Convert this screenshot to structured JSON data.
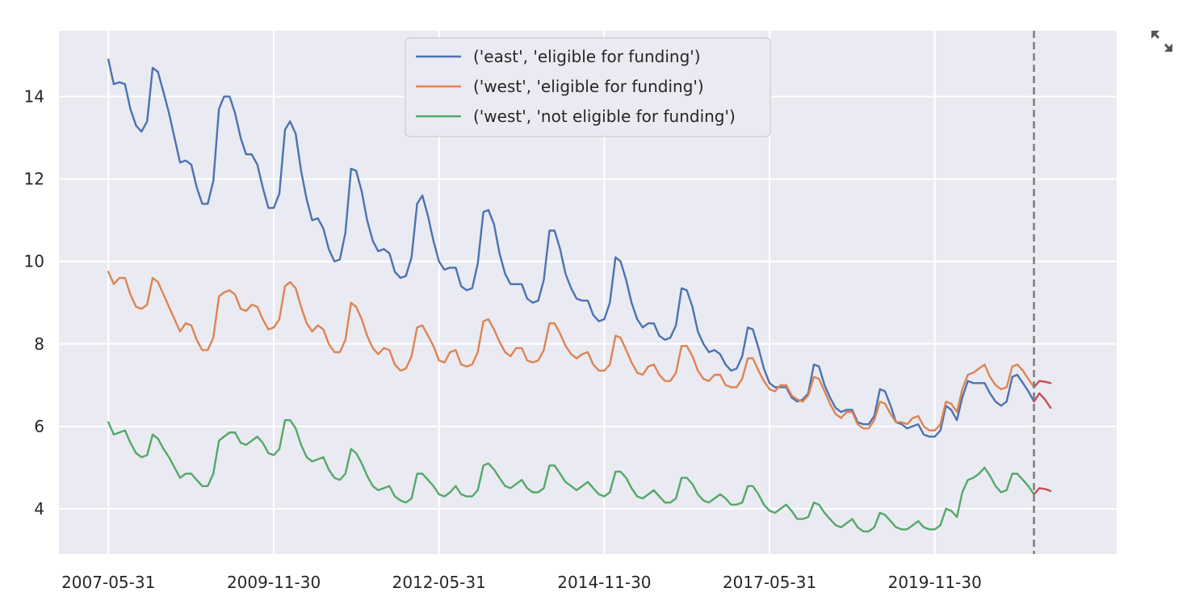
{
  "chart_data": {
    "type": "line",
    "style": "seaborn-darkgrid",
    "x_axis": {
      "ticks": [
        "2007-05-31",
        "2009-11-30",
        "2012-05-31",
        "2014-11-30",
        "2017-05-31",
        "2019-11-30"
      ],
      "range": [
        "2006-08-31",
        "2022-08-31"
      ]
    },
    "y_axis": {
      "ticks": [
        4,
        6,
        8,
        10,
        12,
        14
      ],
      "range": [
        2.9,
        15.6
      ]
    },
    "grid": true,
    "legend": {
      "placement": "upper center",
      "entries": [
        {
          "label": "('east', 'eligible for funding')",
          "color": "#4c72b0"
        },
        {
          "label": "('west', 'eligible for funding')",
          "color": "#dd8452"
        },
        {
          "label": "('west', 'not eligible for funding')",
          "color": "#55a868"
        }
      ]
    },
    "vline": {
      "date": "2021-05-31",
      "color": "#808080",
      "style": "dashed"
    },
    "series": [
      {
        "name": "('east', 'eligible for funding')",
        "color": "#4c72b0",
        "x_start": "2007-05-31",
        "x_step_months": 1,
        "values": [
          14.9,
          14.3,
          14.35,
          14.3,
          13.7,
          13.3,
          13.15,
          13.4,
          14.7,
          14.6,
          14.1,
          13.6,
          13.0,
          12.4,
          12.45,
          12.35,
          11.8,
          11.4,
          11.4,
          11.95,
          13.7,
          14.0,
          14.0,
          13.6,
          13.0,
          12.6,
          12.6,
          12.35,
          11.8,
          11.3,
          11.3,
          11.65,
          13.2,
          13.4,
          13.1,
          12.2,
          11.5,
          11.0,
          11.05,
          10.8,
          10.3,
          10.0,
          10.05,
          10.7,
          12.25,
          12.2,
          11.7,
          11.0,
          10.5,
          10.25,
          10.3,
          10.2,
          9.75,
          9.6,
          9.65,
          10.1,
          11.4,
          11.6,
          11.1,
          10.5,
          10.0,
          9.8,
          9.85,
          9.85,
          9.4,
          9.3,
          9.35,
          9.95,
          11.2,
          11.25,
          10.9,
          10.2,
          9.7,
          9.45,
          9.45,
          9.45,
          9.1,
          9.0,
          9.05,
          9.55,
          10.75,
          10.75,
          10.3,
          9.7,
          9.35,
          9.1,
          9.05,
          9.05,
          8.7,
          8.55,
          8.6,
          9.0,
          10.1,
          10.0,
          9.55,
          9.0,
          8.6,
          8.4,
          8.5,
          8.5,
          8.2,
          8.1,
          8.15,
          8.45,
          9.35,
          9.3,
          8.9,
          8.3,
          8.0,
          7.8,
          7.85,
          7.75,
          7.5,
          7.35,
          7.4,
          7.7,
          8.4,
          8.35,
          7.9,
          7.4,
          7.05,
          6.95,
          6.95,
          6.95,
          6.7,
          6.6,
          6.65,
          6.8,
          7.5,
          7.45,
          7.0,
          6.7,
          6.45,
          6.35,
          6.4,
          6.4,
          6.1,
          6.05,
          6.05,
          6.25,
          6.9,
          6.85,
          6.5,
          6.1,
          6.05,
          5.95,
          6.0,
          6.05,
          5.8,
          5.75,
          5.75,
          5.9,
          6.5,
          6.4,
          6.15,
          6.7,
          7.1,
          7.05,
          7.05,
          7.05,
          6.8,
          6.6,
          6.5,
          6.6,
          7.2,
          7.25,
          7.05,
          6.85,
          6.6
        ]
      },
      {
        "name": "('west', 'eligible for funding')",
        "color": "#dd8452",
        "x_start": "2007-05-31",
        "x_step_months": 1,
        "values": [
          9.75,
          9.45,
          9.6,
          9.6,
          9.2,
          8.9,
          8.85,
          8.95,
          9.6,
          9.5,
          9.2,
          8.9,
          8.6,
          8.3,
          8.5,
          8.45,
          8.1,
          7.85,
          7.85,
          8.15,
          9.15,
          9.25,
          9.3,
          9.2,
          8.85,
          8.8,
          8.95,
          8.9,
          8.6,
          8.35,
          8.4,
          8.6,
          9.4,
          9.5,
          9.35,
          8.9,
          8.5,
          8.3,
          8.45,
          8.35,
          8.0,
          7.8,
          7.8,
          8.1,
          9.0,
          8.9,
          8.6,
          8.2,
          7.9,
          7.75,
          7.9,
          7.85,
          7.5,
          7.35,
          7.4,
          7.7,
          8.4,
          8.45,
          8.2,
          7.95,
          7.6,
          7.55,
          7.8,
          7.85,
          7.5,
          7.45,
          7.5,
          7.8,
          8.55,
          8.6,
          8.35,
          8.05,
          7.8,
          7.7,
          7.9,
          7.9,
          7.6,
          7.55,
          7.6,
          7.85,
          8.5,
          8.5,
          8.25,
          7.95,
          7.75,
          7.65,
          7.75,
          7.8,
          7.5,
          7.35,
          7.35,
          7.5,
          8.2,
          8.15,
          7.85,
          7.55,
          7.3,
          7.25,
          7.45,
          7.5,
          7.25,
          7.1,
          7.1,
          7.3,
          7.95,
          7.95,
          7.7,
          7.35,
          7.15,
          7.1,
          7.25,
          7.25,
          7.0,
          6.95,
          6.95,
          7.15,
          7.65,
          7.65,
          7.35,
          7.1,
          6.9,
          6.85,
          7.0,
          7.0,
          6.75,
          6.65,
          6.6,
          6.75,
          7.2,
          7.15,
          6.85,
          6.55,
          6.3,
          6.2,
          6.35,
          6.35,
          6.05,
          5.95,
          5.95,
          6.15,
          6.6,
          6.55,
          6.3,
          6.1,
          6.1,
          6.05,
          6.2,
          6.25,
          6.0,
          5.9,
          5.9,
          6.05,
          6.6,
          6.55,
          6.35,
          6.9,
          7.25,
          7.3,
          7.4,
          7.5,
          7.2,
          7.0,
          6.9,
          6.95,
          7.45,
          7.5,
          7.35,
          7.15,
          6.95
        ]
      },
      {
        "name": "('west', 'not eligible for funding')",
        "color": "#55a868",
        "x_start": "2007-05-31",
        "x_step_months": 1,
        "values": [
          6.1,
          5.8,
          5.85,
          5.9,
          5.6,
          5.35,
          5.25,
          5.3,
          5.8,
          5.7,
          5.45,
          5.25,
          5.0,
          4.75,
          4.85,
          4.85,
          4.7,
          4.55,
          4.55,
          4.85,
          5.65,
          5.75,
          5.85,
          5.85,
          5.6,
          5.55,
          5.65,
          5.75,
          5.6,
          5.35,
          5.3,
          5.45,
          6.15,
          6.15,
          5.95,
          5.55,
          5.25,
          5.15,
          5.2,
          5.25,
          4.95,
          4.75,
          4.7,
          4.85,
          5.45,
          5.35,
          5.1,
          4.8,
          4.55,
          4.45,
          4.5,
          4.55,
          4.3,
          4.2,
          4.15,
          4.25,
          4.85,
          4.85,
          4.7,
          4.55,
          4.35,
          4.3,
          4.4,
          4.55,
          4.35,
          4.3,
          4.3,
          4.45,
          5.05,
          5.1,
          4.95,
          4.75,
          4.55,
          4.5,
          4.6,
          4.7,
          4.5,
          4.4,
          4.4,
          4.5,
          5.05,
          5.05,
          4.85,
          4.65,
          4.55,
          4.45,
          4.55,
          4.65,
          4.5,
          4.35,
          4.3,
          4.4,
          4.9,
          4.9,
          4.75,
          4.5,
          4.3,
          4.25,
          4.35,
          4.45,
          4.3,
          4.15,
          4.15,
          4.25,
          4.75,
          4.75,
          4.6,
          4.35,
          4.2,
          4.15,
          4.25,
          4.35,
          4.25,
          4.1,
          4.1,
          4.15,
          4.55,
          4.55,
          4.35,
          4.1,
          3.95,
          3.9,
          4.0,
          4.1,
          3.95,
          3.75,
          3.75,
          3.8,
          4.15,
          4.1,
          3.9,
          3.75,
          3.6,
          3.55,
          3.65,
          3.75,
          3.55,
          3.45,
          3.45,
          3.55,
          3.9,
          3.85,
          3.7,
          3.55,
          3.5,
          3.5,
          3.6,
          3.7,
          3.55,
          3.5,
          3.5,
          3.6,
          4.0,
          3.95,
          3.8,
          4.4,
          4.7,
          4.75,
          4.85,
          5.0,
          4.8,
          4.55,
          4.4,
          4.45,
          4.85,
          4.85,
          4.7,
          4.55,
          4.35
        ]
      },
      {
        "name": "",
        "color": "#c44e52",
        "x_start": "2021-05-31",
        "x_step_months": 1,
        "values": [
          6.6,
          6.8,
          6.65,
          6.45
        ]
      },
      {
        "name": "",
        "color": "#c44e52",
        "x_start": "2021-05-31",
        "x_step_months": 1,
        "values": [
          6.95,
          7.1,
          7.08,
          7.05
        ]
      },
      {
        "name": "",
        "color": "#c44e52",
        "x_start": "2021-05-31",
        "x_step_months": 1,
        "values": [
          4.35,
          4.5,
          4.48,
          4.43
        ]
      }
    ]
  },
  "controls": {
    "expand_icon": "expand-arrows-icon"
  }
}
